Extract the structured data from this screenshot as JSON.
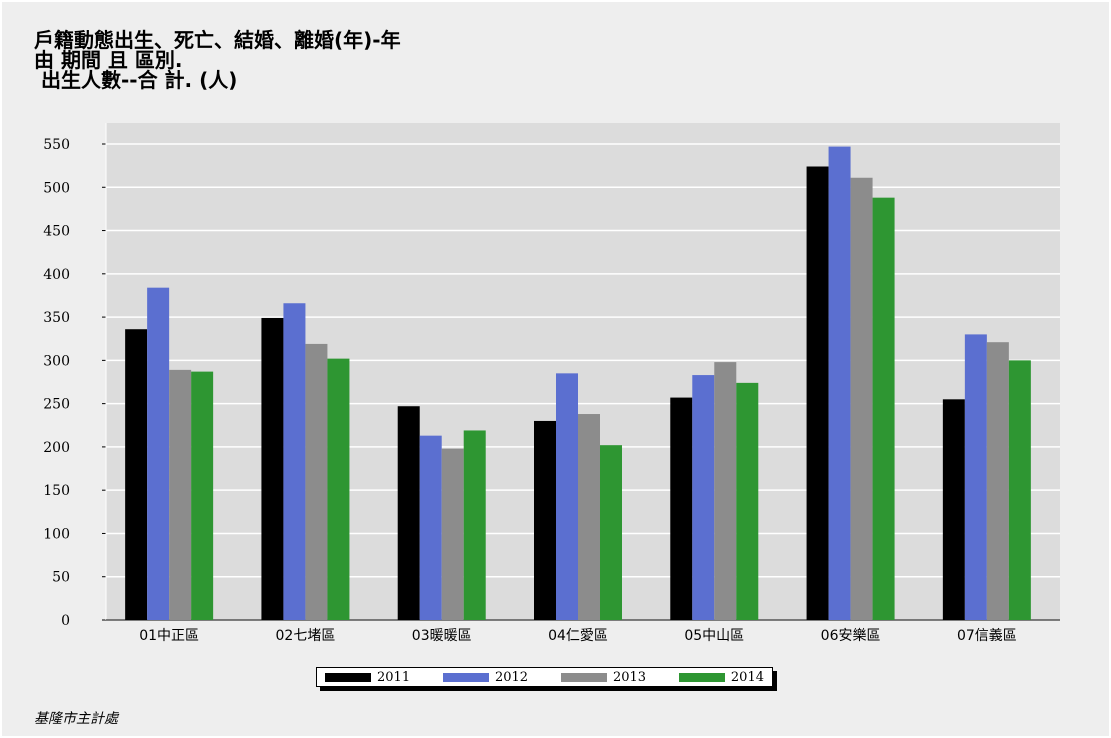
{
  "chart_data": {
    "type": "bar",
    "title_lines": [
      "戶籍動態出生、死亡、結婚、離婚(年)-年",
      "由 期間 且 區別.",
      " 出生人數--合 計. (人)"
    ],
    "categories": [
      "01中正區",
      "02七堵區",
      "03暖暖區",
      "04仁愛區",
      "05中山區",
      "06安樂區",
      "07信義區"
    ],
    "series": [
      {
        "name": "2011",
        "color": "#000000",
        "values": [
          336,
          349,
          247,
          230,
          257,
          524,
          255
        ]
      },
      {
        "name": "2012",
        "color": "#5b6fd0",
        "values": [
          384,
          366,
          213,
          285,
          283,
          547,
          330
        ]
      },
      {
        "name": "2013",
        "color": "#8c8c8c",
        "values": [
          289,
          319,
          198,
          238,
          298,
          511,
          321
        ]
      },
      {
        "name": "2014",
        "color": "#2e9632",
        "values": [
          287,
          302,
          219,
          202,
          274,
          488,
          300
        ]
      }
    ],
    "yticks": [
      0,
      50,
      100,
      150,
      200,
      250,
      300,
      350,
      400,
      450,
      500,
      550
    ],
    "ylim": [
      0,
      550
    ],
    "grid": true,
    "legend": "bottom-center"
  },
  "source": "基隆市主計處"
}
